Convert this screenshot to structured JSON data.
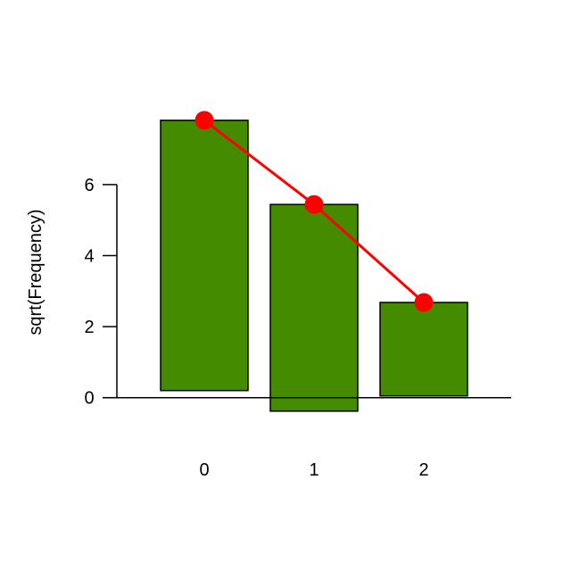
{
  "chart_data": {
    "type": "bar",
    "subtype": "hanging rootogram",
    "title": "",
    "xlabel": "",
    "ylabel": "sqrt(Frequency)",
    "categories": [
      "0",
      "1",
      "2"
    ],
    "bars": [
      {
        "category": "0",
        "top": 7.81,
        "bottom": 0.2
      },
      {
        "category": "1",
        "top": 5.44,
        "bottom": -0.38
      },
      {
        "category": "2",
        "top": 2.68,
        "bottom": 0.05
      }
    ],
    "line": {
      "values": [
        7.81,
        5.44,
        2.68
      ]
    },
    "yticks": [
      0,
      2,
      4,
      6
    ],
    "ylim": [
      -1,
      8.5
    ],
    "grid": false,
    "colors": {
      "bar": "#458B00",
      "line": "#FF0000",
      "reference_line": "#000000"
    }
  }
}
